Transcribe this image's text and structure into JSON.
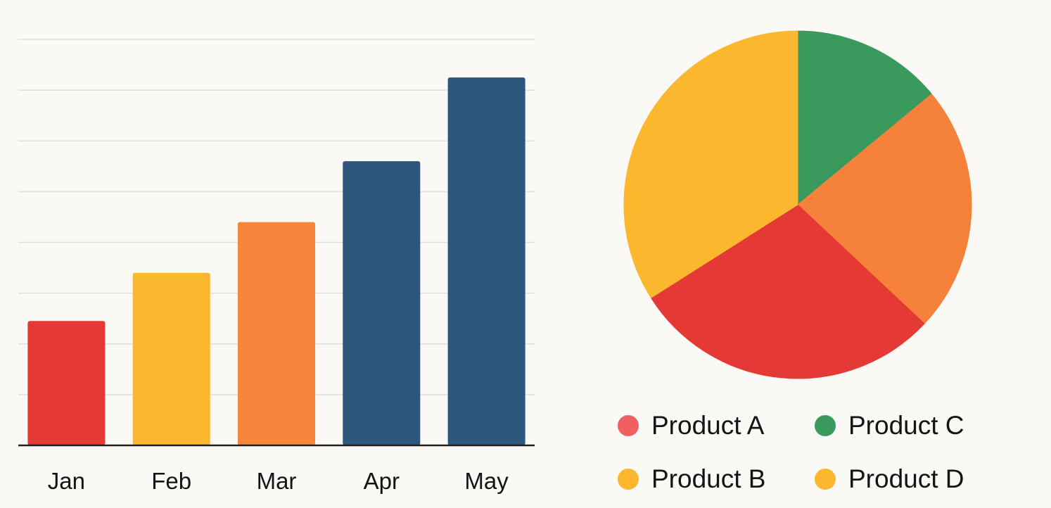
{
  "chart_data": [
    {
      "type": "bar",
      "categories": [
        "Jan",
        "Feb",
        "Mar",
        "Apr",
        "May"
      ],
      "values": [
        24.5,
        34,
        44,
        56,
        72.5
      ],
      "colors": [
        "#e53935",
        "#fbb72d",
        "#f7853b",
        "#2c567b",
        "#2c567b"
      ],
      "ylim": [
        0,
        80
      ],
      "grid": true,
      "xlabel": "",
      "ylabel": "",
      "title": ""
    },
    {
      "type": "pie",
      "slices": [
        {
          "label": "Product C",
          "value": 14,
          "color": "#3a9a5e"
        },
        {
          "label": "Product D",
          "value": 23,
          "color": "#f6813a"
        },
        {
          "label": "Product A",
          "value": 29,
          "color": "#e53935"
        },
        {
          "label": "Product B",
          "value": 34,
          "color": "#fbb72d"
        }
      ],
      "legend": [
        {
          "label": "Product A",
          "color": "#f06060"
        },
        {
          "label": "Product C",
          "color": "#3a9a5e"
        },
        {
          "label": "Product B",
          "color": "#fbb72d"
        },
        {
          "label": "Product D",
          "color": "#fbb72d"
        }
      ],
      "legend_position": "bottom",
      "title": ""
    }
  ]
}
